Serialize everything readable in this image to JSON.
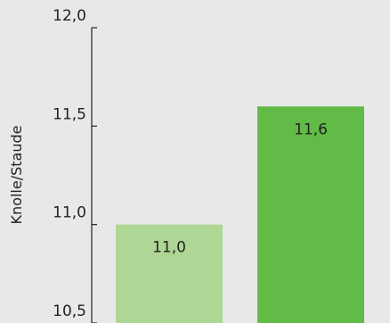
{
  "chart_data": {
    "type": "bar",
    "title": "",
    "xlabel": "",
    "ylabel": "Knolle/Staude",
    "ylim": [
      10.5,
      12.0
    ],
    "yticks": [
      10.5,
      11.0,
      11.5,
      12.0
    ],
    "ytick_labels": [
      "10,5",
      "11,0",
      "11,5",
      "12,0"
    ],
    "categories": [
      "",
      ""
    ],
    "values": [
      11.0,
      11.6
    ],
    "value_labels": [
      "11,0",
      "11,6"
    ],
    "colors": [
      "#aed694",
      "#61bb46"
    ],
    "grid": false,
    "legend": "none",
    "axis_color": "#222222",
    "background": "#e7e8ea"
  }
}
